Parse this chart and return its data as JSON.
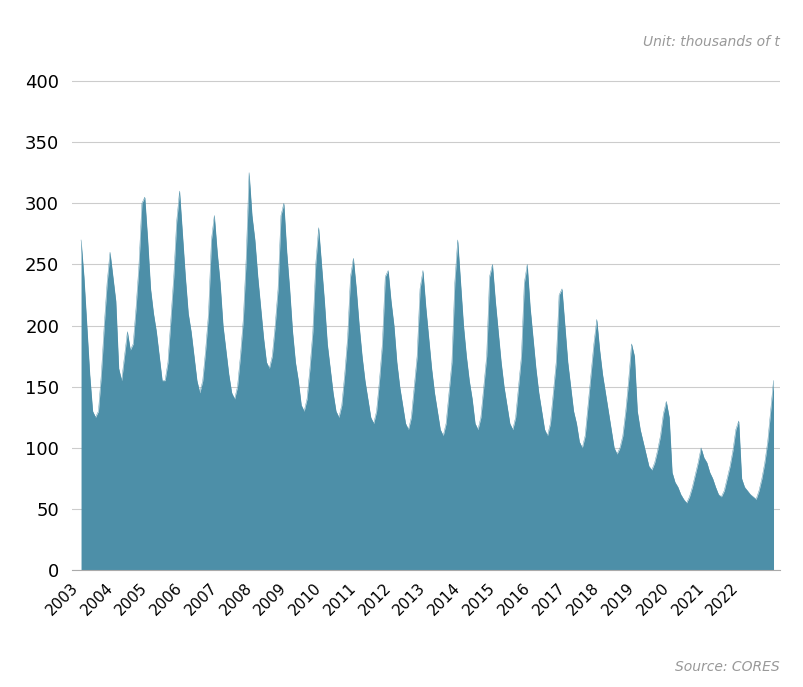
{
  "unit_label": "Unit: thousands of t",
  "source_label": "Source: CORES",
  "fill_color": "#4d8fa8",
  "grid_color": "#cccccc",
  "yticks": [
    0,
    50,
    100,
    150,
    200,
    250,
    300,
    350,
    400
  ],
  "ylim": [
    0,
    410
  ],
  "monthly_values": [
    270,
    240,
    200,
    160,
    130,
    125,
    130,
    160,
    200,
    235,
    260,
    240,
    220,
    165,
    155,
    175,
    195,
    180,
    185,
    215,
    250,
    300,
    305,
    270,
    230,
    210,
    195,
    175,
    155,
    155,
    170,
    205,
    240,
    285,
    310,
    275,
    240,
    210,
    195,
    175,
    155,
    145,
    155,
    180,
    210,
    270,
    290,
    260,
    235,
    200,
    180,
    160,
    145,
    140,
    150,
    175,
    205,
    255,
    325,
    290,
    270,
    240,
    215,
    190,
    170,
    165,
    175,
    200,
    230,
    290,
    300,
    260,
    230,
    195,
    170,
    155,
    135,
    130,
    140,
    165,
    195,
    250,
    280,
    250,
    220,
    185,
    165,
    145,
    130,
    125,
    135,
    160,
    190,
    240,
    255,
    230,
    200,
    175,
    155,
    140,
    125,
    120,
    130,
    155,
    185,
    240,
    245,
    220,
    200,
    170,
    150,
    135,
    120,
    115,
    125,
    150,
    175,
    230,
    245,
    215,
    190,
    165,
    145,
    130,
    115,
    110,
    120,
    145,
    170,
    235,
    270,
    235,
    200,
    175,
    155,
    140,
    120,
    115,
    125,
    150,
    175,
    240,
    250,
    220,
    195,
    170,
    150,
    135,
    120,
    115,
    125,
    150,
    175,
    235,
    250,
    215,
    190,
    165,
    145,
    130,
    115,
    110,
    120,
    145,
    170,
    225,
    230,
    200,
    170,
    150,
    130,
    120,
    105,
    100,
    110,
    135,
    160,
    185,
    205,
    180,
    160,
    145,
    130,
    115,
    100,
    95,
    100,
    110,
    130,
    155,
    185,
    175,
    130,
    115,
    105,
    95,
    85,
    82,
    88,
    98,
    110,
    128,
    138,
    125,
    80,
    72,
    68,
    62,
    58,
    55,
    60,
    68,
    78,
    88,
    100,
    92,
    88,
    80,
    75,
    68,
    62,
    60,
    65,
    75,
    85,
    98,
    115,
    122,
    75,
    68,
    65,
    62,
    60,
    58,
    65,
    75,
    88,
    105,
    130,
    155
  ]
}
